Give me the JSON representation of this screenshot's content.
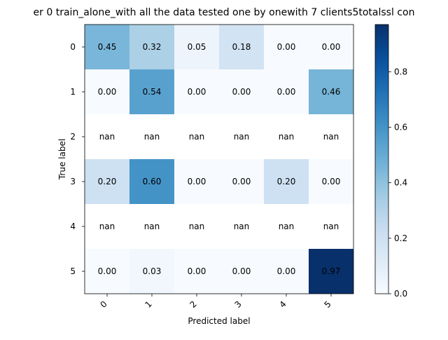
{
  "chart_data": {
    "type": "heatmap",
    "title": "er 0  train_alone_with all the data tested one by onewith 7 clients5totalssl con",
    "xlabel": "Predicted label",
    "ylabel": "True label",
    "x_categories": [
      "0",
      "1",
      "2",
      "3",
      "4",
      "5"
    ],
    "y_categories": [
      "0",
      "1",
      "2",
      "3",
      "4",
      "5"
    ],
    "values": [
      [
        0.45,
        0.32,
        0.05,
        0.18,
        0.0,
        0.0
      ],
      [
        0.0,
        0.54,
        0.0,
        0.0,
        0.0,
        0.46
      ],
      [
        null,
        null,
        null,
        null,
        null,
        null
      ],
      [
        0.2,
        0.6,
        0.0,
        0.0,
        0.2,
        0.0
      ],
      [
        null,
        null,
        null,
        null,
        null,
        null
      ],
      [
        0.0,
        0.03,
        0.0,
        0.0,
        0.0,
        0.97
      ]
    ],
    "cell_labels": [
      [
        "0.45",
        "0.32",
        "0.05",
        "0.18",
        "0.00",
        "0.00"
      ],
      [
        "0.00",
        "0.54",
        "0.00",
        "0.00",
        "0.00",
        "0.46"
      ],
      [
        "nan",
        "nan",
        "nan",
        "nan",
        "nan",
        "nan"
      ],
      [
        "0.20",
        "0.60",
        "0.00",
        "0.00",
        "0.20",
        "0.00"
      ],
      [
        "nan",
        "nan",
        "nan",
        "nan",
        "nan",
        "nan"
      ],
      [
        "0.00",
        "0.03",
        "0.00",
        "0.00",
        "0.00",
        "0.97"
      ]
    ],
    "colormap": "Blues",
    "color_range": [
      0,
      0.97
    ],
    "colorbar_ticks": [
      0.0,
      0.2,
      0.4,
      0.6,
      0.8
    ],
    "colorbar_tick_labels": [
      "0.0",
      "0.2",
      "0.4",
      "0.6",
      "0.8"
    ],
    "x_tick_rotation": "45 degrees",
    "grid": false
  }
}
